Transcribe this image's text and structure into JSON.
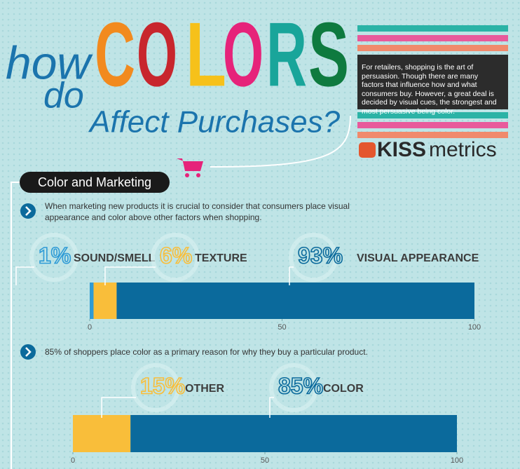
{
  "header": {
    "line1": "how",
    "line2": "do",
    "letters": [
      "C",
      "O",
      "L",
      "O",
      "R",
      "S"
    ],
    "letter_colors": [
      "#f28a1e",
      "#c8262d",
      "#f6c11a",
      "#e6237a",
      "#19a59a",
      "#0e7a3f"
    ],
    "subtitle": "Affect Purchases?",
    "intro": "For retailers, shopping is the art of persuasion. Though there are many factors that influence how and what consumers buy. However, a great deal is decided by visual cues, the strongest and most persuasive being color.",
    "brand": [
      "KISS",
      "metrics"
    ]
  },
  "section": {
    "title": "Color and Marketing",
    "points": [
      "When marketing new products it is crucial to consider that consumers place visual appearance and color above other factors when shopping.",
      "85% of shoppers place color as a primary reason for why they buy a particular product."
    ]
  },
  "chart_data": [
    {
      "type": "bar",
      "stacked": true,
      "orientation": "horizontal",
      "series": [
        {
          "name": "SOUND/SMELL",
          "color": "#2f9bd6",
          "values": [
            1
          ],
          "value_labels": [
            "1%"
          ]
        },
        {
          "name": "TEXTURE",
          "color": "#f9be3a",
          "values": [
            6
          ],
          "value_labels": [
            "6%"
          ]
        },
        {
          "name": "VISUAL APPEARANCE",
          "color": "#0b6a9c",
          "values": [
            93
          ],
          "value_labels": [
            "93%"
          ]
        }
      ],
      "xlim": [
        0,
        100
      ],
      "xticks": [
        0,
        50,
        100
      ]
    },
    {
      "type": "bar",
      "stacked": true,
      "orientation": "horizontal",
      "series": [
        {
          "name": "OTHER",
          "color": "#f9be3a",
          "values": [
            15
          ],
          "value_labels": [
            "15%"
          ]
        },
        {
          "name": "COLOR",
          "color": "#0b6a9c",
          "values": [
            85
          ],
          "value_labels": [
            "85%"
          ]
        }
      ],
      "xlim": [
        0,
        100
      ],
      "xticks": [
        0,
        50,
        100
      ]
    }
  ]
}
